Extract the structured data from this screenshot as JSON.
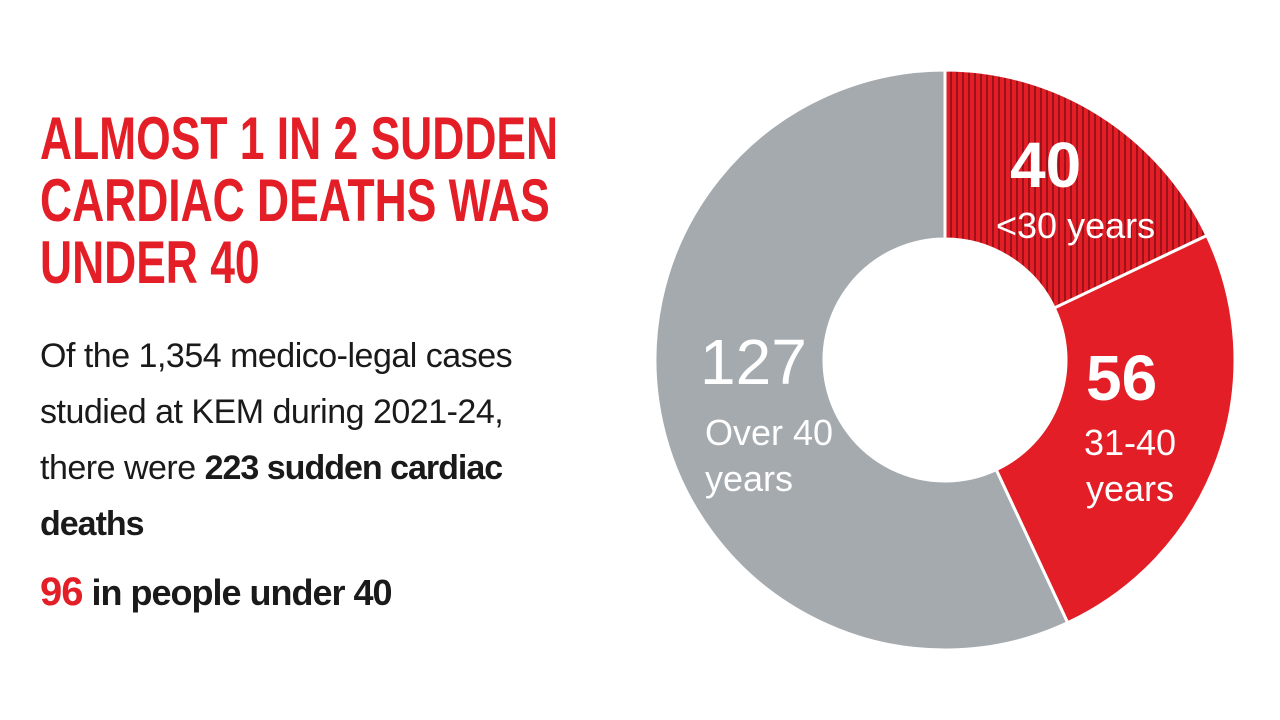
{
  "chart_data": {
    "type": "donut",
    "title_lines": [
      "ALMOST 1 IN 2 SUDDEN",
      "CARDIAC DEATHS WAS",
      "UNDER 40"
    ],
    "body_text": "Of the 1,354 medico-legal cases studied at KEM during 2021-24, there were",
    "body_bold": "223 sudden cardiac deaths",
    "highlight_number": "96",
    "highlight_text": "in people under 40",
    "categories": [
      "<30 years",
      "31-40 years",
      "Over 40 years"
    ],
    "values": [
      40,
      56,
      127
    ],
    "colors": [
      "#e31e26",
      "#e31e26",
      "#a4aaae"
    ],
    "hatched": [
      true,
      false,
      false
    ]
  }
}
